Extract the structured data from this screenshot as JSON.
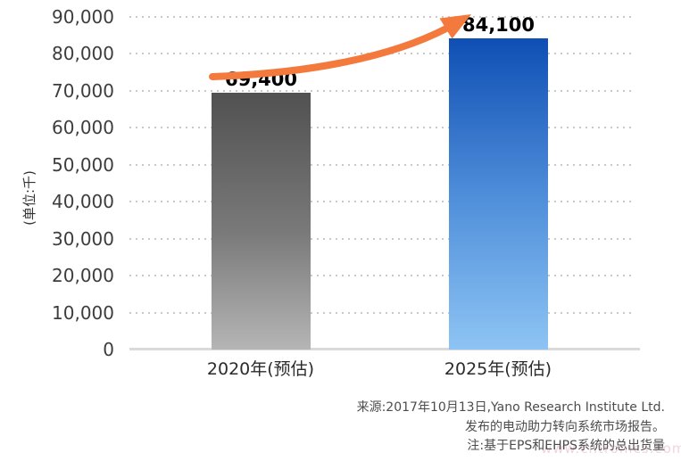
{
  "chart_data": {
    "type": "bar",
    "title": "",
    "categories": [
      "2020年(预估)",
      "2025年(预估)"
    ],
    "values": [
      69400,
      84100
    ],
    "value_labels": [
      "69,400",
      "84,100"
    ],
    "xlabel": "",
    "ylabel": "(单位:千)",
    "ylim": [
      0,
      90000
    ],
    "ytick_step": 10000,
    "ytick_labels": [
      "0",
      "10,000",
      "20,000",
      "30,000",
      "40,000",
      "50,000",
      "60,000",
      "70,000",
      "80,000",
      "90,000"
    ],
    "grid": "dotted horizontal gridlines, legend none",
    "bar_styles": [
      {
        "series": "2020年(预估)",
        "gradient_top": "#515151",
        "gradient_bottom": "#b5b5b5"
      },
      {
        "series": "2025年(预估)",
        "gradient_top": "#0f4fb4",
        "gradient_bottom": "#8ec4f4"
      }
    ],
    "annotations": [
      {
        "type": "growth-arrow",
        "color": "#f4793c",
        "from": "above 2020 bar",
        "to": "above 2025 bar"
      }
    ]
  },
  "footer": {
    "source_line1": "来源:2017年10月13日,Yano Research Institute Ltd.",
    "source_line2": "发布的电动助力转向系统市场报告。",
    "note_line": "注:基于EPS和EHPS系统的总出货量"
  },
  "watermark_text": "www.cntronics.com",
  "colors": {
    "axis_text": "#3d3d3d",
    "value_label": "#000000",
    "gridline": "#c9c9c9",
    "baseline": "#dadada",
    "arrow": "#f4793c",
    "footer_text": "#4c4c4c"
  }
}
